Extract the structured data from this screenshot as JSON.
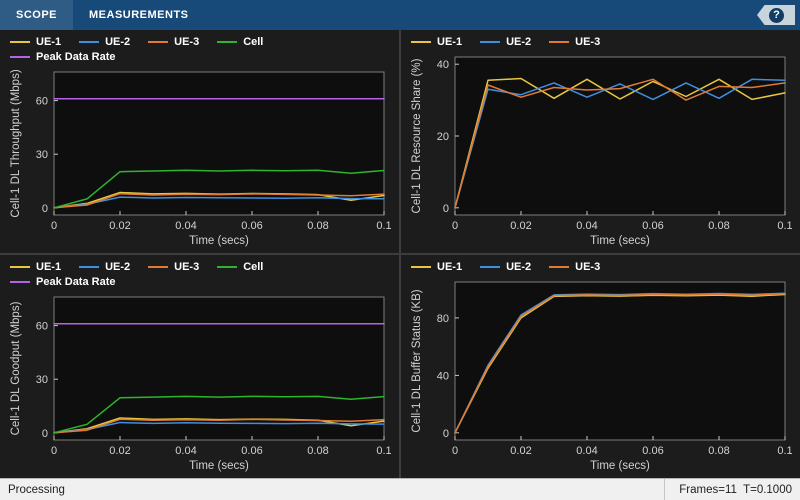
{
  "toolbar": {
    "tabs": [
      {
        "label": "SCOPE"
      },
      {
        "label": "MEASUREMENTS"
      }
    ],
    "help_label": "?"
  },
  "status_bar": {
    "left": "Processing",
    "right": "Frames=11  T=0.1000"
  },
  "colors": {
    "toolbar_bg": "#174a78",
    "panel_bg": "#1c1c1c",
    "plot_bg": "#0e0e0e",
    "divider": "#3d3d3d",
    "axis_stroke": "#7d7d7d",
    "tick_text": "#d2d2d2",
    "status_bg": "#f0f0f0",
    "status_text": "#1e1e1e",
    "help_tag_bg": "#c9d3dc",
    "help_circle_bg": "#123c63",
    "ue1": "#E8C63F",
    "ue2": "#3D8FE0",
    "ue3": "#E07B33",
    "cell": "#2DB52D",
    "peak": "#B562E6"
  },
  "chart_data": [
    {
      "type": "line",
      "ylabel": "Cell-1 DL Throughput (Mbps)",
      "xlabel": "Time (secs)",
      "x": [
        0,
        0.01,
        0.02,
        0.03,
        0.04,
        0.05,
        0.06,
        0.07,
        0.08,
        0.09,
        0.1
      ],
      "xlim": [
        0,
        0.1
      ],
      "ylim": [
        -4,
        76
      ],
      "xticks": [
        0,
        0.02,
        0.04,
        0.06,
        0.08,
        0.1
      ],
      "xtick_labels": [
        "0",
        "0.02",
        "0.04",
        "0.06",
        "0.08",
        "0.1"
      ],
      "yticks": [
        0,
        30,
        60
      ],
      "legend_position": "top",
      "legend_rows": [
        [
          0,
          1,
          2,
          3
        ],
        [
          4
        ]
      ],
      "series": [
        {
          "name": "UE-1",
          "color": "#E8C63F",
          "values": [
            0,
            2.5,
            8.6,
            7.8,
            8.1,
            7.7,
            8.0,
            7.8,
            7.4,
            4.2,
            6.9
          ]
        },
        {
          "name": "UE-2",
          "color": "#3D8FE0",
          "values": [
            0,
            2.0,
            6.0,
            5.5,
            5.8,
            5.6,
            5.5,
            5.4,
            5.6,
            5.2,
            5.1
          ]
        },
        {
          "name": "UE-3",
          "color": "#E07B33",
          "values": [
            0,
            1.6,
            7.9,
            7.2,
            7.6,
            7.4,
            7.8,
            7.5,
            7.2,
            6.8,
            7.7
          ]
        },
        {
          "name": "Cell",
          "color": "#2DB52D",
          "values": [
            0,
            5.0,
            20.2,
            20.6,
            21.0,
            20.6,
            21.0,
            20.8,
            21.0,
            19.4,
            20.9
          ]
        },
        {
          "name": "Peak Data Rate",
          "color": "#B562E6",
          "values": [
            61,
            61,
            61,
            61,
            61,
            61,
            61,
            61,
            61,
            61,
            61
          ]
        }
      ]
    },
    {
      "type": "line",
      "ylabel": "Cell-1 DL Resource Share (%)",
      "xlabel": "Time (secs)",
      "x": [
        0,
        0.01,
        0.02,
        0.03,
        0.04,
        0.05,
        0.06,
        0.07,
        0.08,
        0.09,
        0.1
      ],
      "xlim": [
        0,
        0.1
      ],
      "ylim": [
        -2,
        42
      ],
      "xticks": [
        0,
        0.02,
        0.04,
        0.06,
        0.08,
        0.1
      ],
      "xtick_labels": [
        "0",
        "0.02",
        "0.04",
        "0.06",
        "0.08",
        "0.1"
      ],
      "yticks": [
        0,
        20,
        40
      ],
      "legend_position": "top",
      "legend_rows": [
        [
          0,
          1,
          2
        ]
      ],
      "series": [
        {
          "name": "UE-1",
          "color": "#E8C63F",
          "values": [
            0,
            35.5,
            36.0,
            30.5,
            35.8,
            30.3,
            35.2,
            31.0,
            35.8,
            30.2,
            32.0
          ]
        },
        {
          "name": "UE-2",
          "color": "#3D8FE0",
          "values": [
            0,
            33.0,
            31.5,
            34.8,
            30.8,
            34.5,
            30.2,
            34.8,
            30.5,
            35.8,
            35.5
          ]
        },
        {
          "name": "UE-3",
          "color": "#E07B33",
          "values": [
            0,
            34.2,
            30.8,
            33.5,
            32.8,
            33.2,
            35.8,
            30.0,
            33.8,
            33.5,
            34.8
          ]
        }
      ]
    },
    {
      "type": "line",
      "ylabel": "Cell-1 DL Goodput (Mbps)",
      "xlabel": "Time (secs)",
      "x": [
        0,
        0.01,
        0.02,
        0.03,
        0.04,
        0.05,
        0.06,
        0.07,
        0.08,
        0.09,
        0.1
      ],
      "xlim": [
        0,
        0.1
      ],
      "ylim": [
        -4,
        76
      ],
      "xticks": [
        0,
        0.02,
        0.04,
        0.06,
        0.08,
        0.1
      ],
      "xtick_labels": [
        "0",
        "0.02",
        "0.04",
        "0.06",
        "0.08",
        "0.1"
      ],
      "yticks": [
        0,
        30,
        60
      ],
      "legend_position": "top",
      "legend_rows": [
        [
          0,
          1,
          2,
          3
        ],
        [
          4
        ]
      ],
      "series": [
        {
          "name": "UE-1",
          "color": "#E8C63F",
          "values": [
            0,
            2.3,
            8.3,
            7.5,
            7.8,
            7.4,
            7.7,
            7.5,
            7.1,
            4.0,
            6.6
          ]
        },
        {
          "name": "UE-2",
          "color": "#3D8FE0",
          "values": [
            0,
            1.9,
            5.8,
            5.3,
            5.6,
            5.4,
            5.3,
            5.2,
            5.4,
            5.0,
            4.9
          ]
        },
        {
          "name": "UE-3",
          "color": "#E07B33",
          "values": [
            0,
            1.5,
            7.6,
            7.0,
            7.3,
            7.1,
            7.5,
            7.2,
            6.9,
            6.5,
            7.4
          ]
        },
        {
          "name": "Cell",
          "color": "#2DB52D",
          "values": [
            0,
            4.8,
            19.6,
            20.0,
            20.4,
            20.0,
            20.4,
            20.2,
            20.4,
            18.8,
            20.3
          ]
        },
        {
          "name": "Peak Data Rate",
          "color": "#B562E6",
          "values": [
            61,
            61,
            61,
            61,
            61,
            61,
            61,
            61,
            61,
            61,
            61
          ]
        }
      ]
    },
    {
      "type": "line",
      "ylabel": "Cell-1 DL Buffer Status (KB)",
      "xlabel": "Time (secs)",
      "x": [
        0,
        0.01,
        0.02,
        0.03,
        0.04,
        0.05,
        0.06,
        0.07,
        0.08,
        0.09,
        0.1
      ],
      "xlim": [
        0,
        0.1
      ],
      "ylim": [
        -5,
        105
      ],
      "xticks": [
        0,
        0.02,
        0.04,
        0.06,
        0.08,
        0.1
      ],
      "xtick_labels": [
        "0",
        "0.02",
        "0.04",
        "0.06",
        "0.08",
        "0.1"
      ],
      "yticks": [
        0,
        40,
        80
      ],
      "legend_position": "top",
      "legend_rows": [
        [
          0,
          1,
          2
        ]
      ],
      "series": [
        {
          "name": "UE-1",
          "color": "#E8C63F",
          "values": [
            0,
            45,
            80,
            95,
            95.5,
            95.2,
            95.8,
            95.4,
            95.9,
            95.1,
            96.3
          ]
        },
        {
          "name": "UE-2",
          "color": "#3D8FE0",
          "values": [
            0,
            47,
            82,
            96,
            96.6,
            96.2,
            96.9,
            96.5,
            97.0,
            96.4,
            97.2
          ]
        },
        {
          "name": "UE-3",
          "color": "#E07B33",
          "values": [
            0,
            46,
            81,
            95.5,
            96.0,
            95.7,
            96.4,
            96.0,
            96.5,
            95.8,
            96.8
          ]
        }
      ]
    }
  ]
}
